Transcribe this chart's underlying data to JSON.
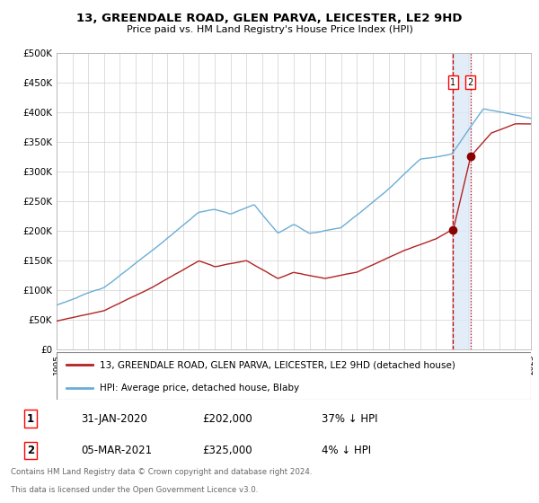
{
  "title": "13, GREENDALE ROAD, GLEN PARVA, LEICESTER, LE2 9HD",
  "subtitle": "Price paid vs. HM Land Registry's House Price Index (HPI)",
  "ylim": [
    0,
    500000
  ],
  "yticks": [
    0,
    50000,
    100000,
    150000,
    200000,
    250000,
    300000,
    350000,
    400000,
    450000,
    500000
  ],
  "ytick_labels": [
    "£0",
    "£50K",
    "£100K",
    "£150K",
    "£200K",
    "£250K",
    "£300K",
    "£350K",
    "£400K",
    "£450K",
    "£500K"
  ],
  "hpi_color": "#6aaed6",
  "price_color": "#b22222",
  "marker_color": "#8b0000",
  "shade_color": "#dce9f5",
  "vline1_color": "#cc0000",
  "vline2_color": "#cc0000",
  "legend_label_price": "13, GREENDALE ROAD, GLEN PARVA, LEICESTER, LE2 9HD (detached house)",
  "legend_label_hpi": "HPI: Average price, detached house, Blaby",
  "transaction1_date": "31-JAN-2020",
  "transaction1_price": "£202,000",
  "transaction1_hpi": "37% ↓ HPI",
  "transaction2_date": "05-MAR-2021",
  "transaction2_price": "£325,000",
  "transaction2_hpi": "4% ↓ HPI",
  "footnote1": "Contains HM Land Registry data © Crown copyright and database right 2024.",
  "footnote2": "This data is licensed under the Open Government Licence v3.0.",
  "grid_color": "#d0d0d0",
  "x_start_year": 1995,
  "x_end_year": 2025,
  "transaction1_year": 2020.08,
  "transaction2_year": 2021.17,
  "transaction1_value": 202000,
  "transaction2_value": 325000
}
